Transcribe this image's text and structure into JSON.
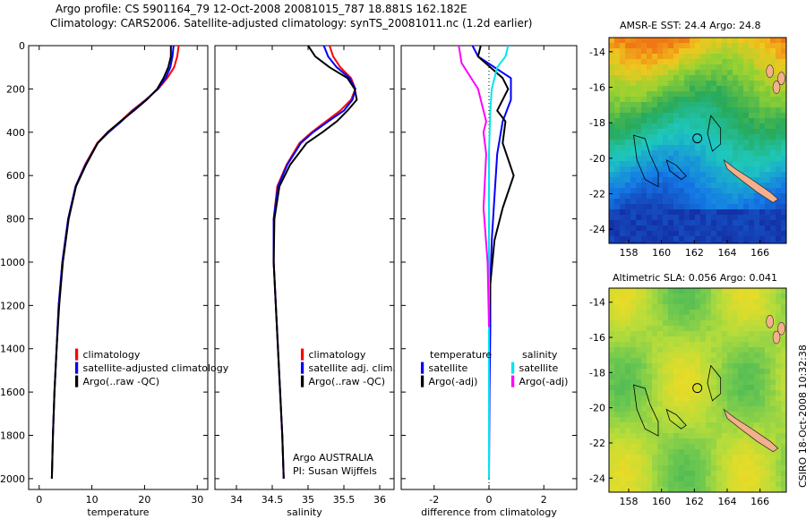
{
  "header": {
    "line1": "Argo profile: CS 5901164_79 12-Oct-2008 20081015_787 18.881S 162.182E",
    "line2": "Climatology: CARS2006. Satellite-adjusted climatology: synTS_20081011.nc (1.2d earlier)"
  },
  "side_stamp": "CSIRO 18-Oct-2008 10:32:38",
  "colors": {
    "red": "#ff0000",
    "blue": "#0000ff",
    "black": "#000000",
    "cyan": "#00e5ee",
    "magenta": "#ff00ff"
  },
  "chart_data": [
    {
      "type": "line",
      "name": "temperature-panel",
      "xlabel": "temperature",
      "ylabel": "",
      "xlim": [
        -2,
        32
      ],
      "ylim": [
        2050,
        0
      ],
      "xticks": [
        "0",
        "10",
        "20",
        "30"
      ],
      "yticks": [
        "0",
        "200",
        "400",
        "600",
        "800",
        "1000",
        "1200",
        "1400",
        "1600",
        "1800",
        "2000"
      ],
      "legend": [
        "climatology",
        "satellite-adjusted climatology",
        "Argo(..raw -QC)"
      ],
      "series": [
        {
          "name": "climatology",
          "color": "red",
          "x": [
            26.5,
            26.2,
            25.6,
            24.3,
            22.6,
            20.2,
            17.6,
            15.4,
            13.0,
            11.0,
            8.7,
            6.9,
            5.5,
            4.4,
            3.7,
            3.3,
            2.9,
            2.6,
            2.4
          ],
          "y": [
            0,
            50,
            100,
            150,
            200,
            250,
            300,
            350,
            400,
            450,
            550,
            650,
            800,
            1000,
            1200,
            1400,
            1600,
            1800,
            2000
          ]
        },
        {
          "name": "satellite-adjusted climatology",
          "color": "blue",
          "x": [
            25.5,
            25.3,
            24.9,
            24.0,
            22.5,
            20.3,
            17.8,
            15.6,
            13.2,
            11.1,
            8.8,
            6.9,
            5.5,
            4.4,
            3.7,
            3.3,
            2.9,
            2.6,
            2.4
          ],
          "y": [
            0,
            50,
            100,
            150,
            200,
            250,
            300,
            350,
            400,
            450,
            550,
            650,
            800,
            1000,
            1200,
            1400,
            1600,
            1800,
            2000
          ]
        },
        {
          "name": "Argo(..raw -QC)",
          "color": "black",
          "x": [
            25.0,
            25.0,
            24.5,
            23.6,
            22.4,
            20.4,
            18.0,
            15.4,
            13.0,
            11.1,
            8.9,
            7.0,
            5.6,
            4.5,
            3.8,
            3.3,
            2.9,
            2.6,
            2.4
          ],
          "y": [
            0,
            50,
            100,
            150,
            200,
            250,
            300,
            350,
            400,
            450,
            550,
            650,
            800,
            1000,
            1200,
            1400,
            1600,
            1800,
            2000
          ]
        }
      ]
    },
    {
      "type": "line",
      "name": "salinity-panel",
      "xlabel": "salinity",
      "ylabel": "",
      "xlim": [
        33.7,
        36.2
      ],
      "ylim": [
        2050,
        0
      ],
      "xticks": [
        "34",
        "34.5",
        "35",
        "35.5",
        "36"
      ],
      "legend": [
        "climatology",
        "satellite adj. clim.",
        "Argo(..raw -QC)"
      ],
      "annotation": [
        "Argo AUSTRALIA",
        "PI: Susan Wijffels"
      ],
      "series": [
        {
          "name": "climatology",
          "color": "red",
          "x": [
            35.3,
            35.35,
            35.45,
            35.6,
            35.66,
            35.6,
            35.45,
            35.25,
            35.05,
            34.88,
            34.7,
            34.57,
            34.52,
            34.52,
            34.55,
            34.58,
            34.61,
            34.64,
            34.66
          ],
          "y": [
            0,
            50,
            100,
            150,
            200,
            250,
            300,
            350,
            400,
            450,
            550,
            650,
            800,
            1000,
            1200,
            1400,
            1600,
            1800,
            2000
          ]
        },
        {
          "name": "satellite adj. clim.",
          "color": "blue",
          "x": [
            35.22,
            35.28,
            35.4,
            35.58,
            35.66,
            35.62,
            35.5,
            35.28,
            35.07,
            34.9,
            34.71,
            34.58,
            34.52,
            34.52,
            34.55,
            34.58,
            34.61,
            34.64,
            34.66
          ],
          "y": [
            0,
            50,
            100,
            150,
            200,
            250,
            300,
            350,
            400,
            450,
            550,
            650,
            800,
            1000,
            1200,
            1400,
            1600,
            1800,
            2000
          ]
        },
        {
          "name": "Argo(..raw -QC)",
          "color": "black",
          "x": [
            35.0,
            35.1,
            35.3,
            35.55,
            35.65,
            35.68,
            35.55,
            35.4,
            35.2,
            34.98,
            34.75,
            34.6,
            34.53,
            34.52,
            34.55,
            34.58,
            34.61,
            34.64,
            34.66
          ],
          "y": [
            0,
            50,
            100,
            150,
            200,
            250,
            300,
            350,
            400,
            450,
            550,
            650,
            800,
            1000,
            1200,
            1400,
            1600,
            1800,
            2000
          ]
        }
      ]
    },
    {
      "type": "line",
      "name": "difference-panel",
      "xlabel": "difference from climatology",
      "ylabel": "",
      "xlim": [
        -3.2,
        3.2
      ],
      "ylim": [
        2050,
        0
      ],
      "xticks": [
        "-2",
        "0",
        "2"
      ],
      "legend_left_title": "temperature",
      "legend_right_title": "salinity",
      "legend": [
        "satellite",
        "Argo(-adj)",
        "satellite",
        "Argo(-adj)"
      ],
      "series": [
        {
          "name": "temperature satellite",
          "color": "blue",
          "x": [
            -0.6,
            -0.4,
            0.2,
            0.8,
            0.8,
            0.5,
            0.3,
            0.2,
            0.1,
            0.05,
            0.05,
            0.02,
            0.0
          ],
          "y": [
            0,
            50,
            100,
            150,
            250,
            350,
            500,
            700,
            900,
            1100,
            1300,
            1600,
            2000
          ]
        },
        {
          "name": "temperature Argo(-adj)",
          "color": "black",
          "x": [
            -0.3,
            -0.4,
            0.5,
            0.7,
            0.3,
            0.6,
            0.5,
            0.9,
            0.5,
            0.2,
            0.05,
            0.0,
            0.0
          ],
          "y": [
            0,
            50,
            150,
            200,
            300,
            350,
            450,
            600,
            750,
            900,
            1100,
            1300,
            2000
          ]
        },
        {
          "name": "salinity satellite",
          "color": "cyan",
          "x": [
            0.7,
            0.6,
            0.3,
            0.1,
            0.05,
            0.0,
            0.0,
            0.0
          ],
          "y": [
            0,
            50,
            100,
            200,
            300,
            500,
            1000,
            2000
          ]
        },
        {
          "name": "salinity Argo(-adj)",
          "color": "magenta",
          "x": [
            -1.1,
            -1.0,
            -0.4,
            -0.1,
            -0.2,
            -0.1,
            -0.2,
            -0.05,
            0.0
          ],
          "y": [
            0,
            80,
            200,
            350,
            400,
            500,
            750,
            1000,
            1300
          ]
        }
      ]
    },
    {
      "type": "heatmap",
      "name": "sst-map",
      "title": "AMSR-E SST: 24.4 Argo: 24.8",
      "xticks": [
        "158",
        "160",
        "162",
        "164",
        "166"
      ],
      "yticks": [
        "-14",
        "-16",
        "-18",
        "-20",
        "-22",
        "-24"
      ],
      "argo_marker": {
        "lon": 162.18,
        "lat": -18.88
      }
    },
    {
      "type": "heatmap",
      "name": "sla-map",
      "title": "Altimetric SLA: 0.056 Argo: 0.041",
      "xticks": [
        "158",
        "160",
        "162",
        "164",
        "166"
      ],
      "yticks": [
        "-14",
        "-16",
        "-18",
        "-20",
        "-22",
        "-24"
      ],
      "argo_marker": {
        "lon": 162.18,
        "lat": -18.88
      }
    }
  ]
}
